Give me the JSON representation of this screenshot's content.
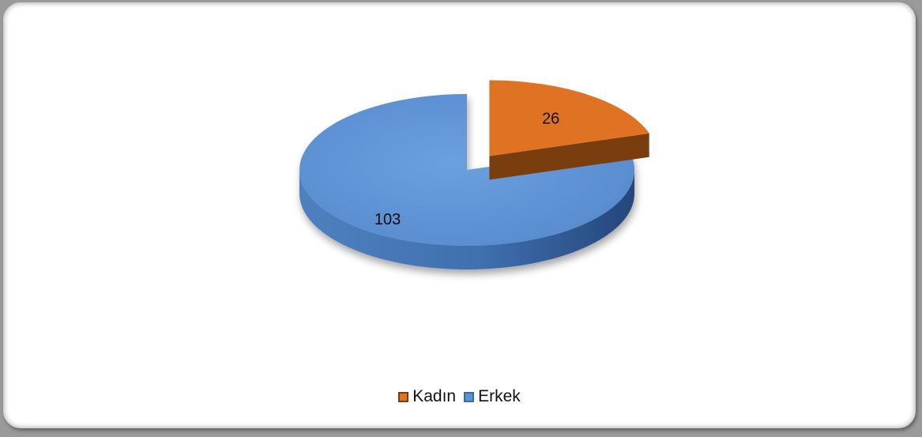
{
  "chart_data": {
    "type": "pie",
    "style": "3d-exploded",
    "title": "",
    "slices": [
      {
        "label": "Kadın",
        "value": 26,
        "color": "#E07224",
        "side_color": "#7A3E0E"
      },
      {
        "label": "Erkek",
        "value": 103,
        "color": "#5B92D6",
        "side_color": "#3B6AA6"
      }
    ],
    "legend_position": "bottom"
  }
}
